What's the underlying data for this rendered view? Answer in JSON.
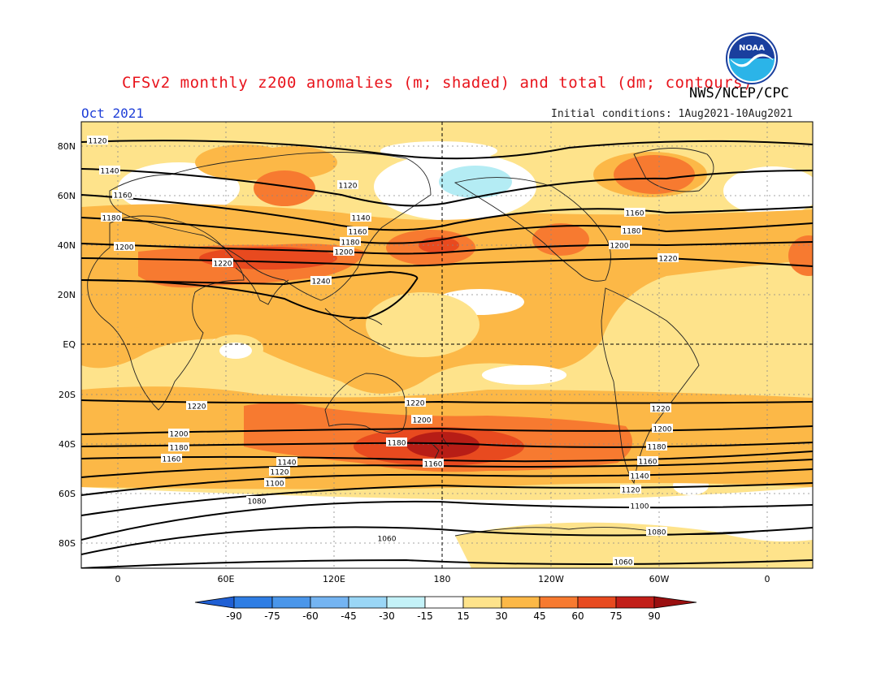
{
  "header": {
    "title": "CFSv2 monthly z200 anomalies (m; shaded) and total (dm; contours)",
    "org": "NWS/NCEP/CPC",
    "month": "Oct 2021",
    "initial_conditions": "Initial conditions: 1Aug2021-10Aug2021",
    "logo_text": "NOAA"
  },
  "colors": {
    "fill_15_30": "#fee38b",
    "fill_30_45": "#fcb847",
    "fill_45_60": "#f77a30",
    "fill_60_75": "#e84a1f",
    "fill_75_90": "#b71d16",
    "fill_neg15_neg30": "#b4ecf4"
  },
  "map": {
    "lat_labels": [
      "80N",
      "60N",
      "40N",
      "20N",
      "EQ",
      "20S",
      "40S",
      "60S",
      "80S"
    ],
    "lon_labels": [
      "0",
      "60E",
      "120E",
      "180",
      "120W",
      "60W",
      "0"
    ]
  },
  "contours": [
    {
      "value": "1060",
      "labels": [
        "1060",
        "1060"
      ]
    },
    {
      "value": "1080",
      "labels": [
        "1080",
        "1080"
      ]
    },
    {
      "value": "1100",
      "labels": [
        "1100",
        "1100"
      ]
    },
    {
      "value": "1120",
      "labels": [
        "1120",
        "1120",
        "1120",
        "1120"
      ]
    },
    {
      "value": "1140",
      "labels": [
        "1140",
        "1140",
        "1140",
        "1140"
      ]
    },
    {
      "value": "1160",
      "labels": [
        "1160",
        "1160",
        "1160",
        "1160",
        "1160",
        "1160"
      ]
    },
    {
      "value": "1180",
      "labels": [
        "1180",
        "1180",
        "1180",
        "1180",
        "1180",
        "1180"
      ]
    },
    {
      "value": "1200",
      "labels": [
        "1200",
        "1200",
        "1200",
        "1200",
        "1200",
        "1200"
      ]
    },
    {
      "value": "1220",
      "labels": [
        "1220",
        "1220",
        "1220",
        "1220",
        "1220"
      ]
    },
    {
      "value": "1240",
      "labels": [
        "1240"
      ]
    }
  ],
  "colorbar": {
    "labels": [
      "-90",
      "-75",
      "-60",
      "-45",
      "-30",
      "-15",
      "15",
      "30",
      "45",
      "60",
      "75",
      "90"
    ],
    "colors": [
      "#1f5fd4",
      "#2e7de4",
      "#4a96ea",
      "#74b4f2",
      "#9ad6f6",
      "#c4f2f8",
      "#ffffff",
      "#fee38b",
      "#fcb847",
      "#f77a30",
      "#e84a1f",
      "#c21e18",
      "#9a0f10"
    ]
  }
}
